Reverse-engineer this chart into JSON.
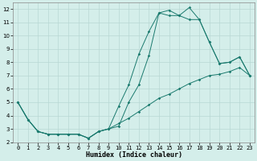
{
  "title": "",
  "xlabel": "Humidex (Indice chaleur)",
  "ylabel": "",
  "background_color": "#d4eeea",
  "grid_color": "#b8d8d4",
  "line_color": "#1a7a6e",
  "xlim": [
    -0.5,
    23.5
  ],
  "ylim": [
    2,
    12.5
  ],
  "yticks": [
    2,
    3,
    4,
    5,
    6,
    7,
    8,
    9,
    10,
    11,
    12
  ],
  "xticks": [
    0,
    1,
    2,
    3,
    4,
    5,
    6,
    7,
    8,
    9,
    10,
    11,
    12,
    13,
    14,
    15,
    16,
    17,
    18,
    19,
    20,
    21,
    22,
    23
  ],
  "series1": {
    "x": [
      0,
      1,
      2,
      3,
      4,
      5,
      6,
      7,
      8,
      9,
      10,
      11,
      12,
      13,
      14,
      15,
      16,
      17,
      18,
      19,
      20,
      21,
      22,
      23
    ],
    "y": [
      5.0,
      3.7,
      2.8,
      2.6,
      2.6,
      2.6,
      2.6,
      2.3,
      2.8,
      3.0,
      3.2,
      5.0,
      6.3,
      8.5,
      11.7,
      11.9,
      11.5,
      12.1,
      11.2,
      9.5,
      7.9,
      8.0,
      8.4,
      7.0
    ]
  },
  "series2": {
    "x": [
      0,
      1,
      2,
      3,
      4,
      5,
      6,
      7,
      8,
      9,
      10,
      11,
      12,
      13,
      14,
      15,
      16,
      17,
      18,
      19,
      20,
      21,
      22,
      23
    ],
    "y": [
      5.0,
      3.7,
      2.8,
      2.6,
      2.6,
      2.6,
      2.6,
      2.3,
      2.8,
      3.0,
      4.7,
      6.3,
      8.6,
      10.3,
      11.7,
      11.5,
      11.5,
      11.2,
      11.2,
      9.5,
      7.9,
      8.0,
      8.4,
      7.0
    ]
  },
  "series3": {
    "x": [
      0,
      1,
      2,
      3,
      4,
      5,
      6,
      7,
      8,
      9,
      10,
      11,
      12,
      13,
      14,
      15,
      16,
      17,
      18,
      19,
      20,
      21,
      22,
      23
    ],
    "y": [
      5.0,
      3.7,
      2.8,
      2.6,
      2.6,
      2.6,
      2.6,
      2.3,
      2.8,
      3.0,
      3.4,
      3.8,
      4.3,
      4.8,
      5.3,
      5.6,
      6.0,
      6.4,
      6.7,
      7.0,
      7.1,
      7.3,
      7.6,
      7.0
    ]
  },
  "xlabel_fontsize": 6,
  "tick_fontsize": 5
}
